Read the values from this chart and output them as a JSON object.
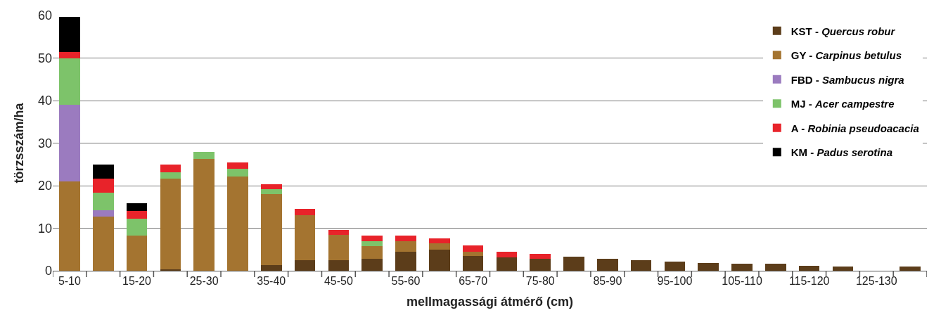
{
  "chart_data": {
    "type": "bar",
    "stacked": true,
    "xlabel": "mellmagassági átmérő (cm)",
    "ylabel": "törzsszám/ha",
    "categories": [
      "5-10",
      null,
      "15-20",
      null,
      "25-30",
      null,
      "35-40",
      null,
      "45-50",
      null,
      "55-60",
      null,
      "65-70",
      null,
      "75-80",
      null,
      "85-90",
      null,
      "95-100",
      null,
      "105-110",
      null,
      "115-120",
      null,
      "125-130",
      null
    ],
    "series": [
      {
        "name": "KST - Quercus robur",
        "color": "#5c3d1a",
        "values": [
          0,
          0,
          0,
          0.4,
          0,
          0,
          1.4,
          2.5,
          2.4,
          2.8,
          4.5,
          5.0,
          3.4,
          3.2,
          2.8,
          3.3,
          2.8,
          2.5,
          2.2,
          1.9,
          1.6,
          1.6,
          1.2,
          1.0,
          0,
          1.0
        ]
      },
      {
        "name": "GY - Carpinus betulus",
        "color": "#a47430",
        "values": [
          21.0,
          12.7,
          8.2,
          21.2,
          26.3,
          22.1,
          16.6,
          10.5,
          6.0,
          3.0,
          2.5,
          1.4,
          1.1,
          0,
          0,
          0,
          0,
          0,
          0,
          0,
          0,
          0,
          0,
          0,
          0,
          0
        ]
      },
      {
        "name": "FBD - Sambucus nigra",
        "color": "#9b7bbf",
        "values": [
          18.0,
          1.5,
          0,
          0,
          0,
          0,
          0,
          0,
          0,
          0,
          0,
          0,
          0,
          0,
          0,
          0,
          0,
          0,
          0,
          0,
          0,
          0,
          0,
          0,
          0,
          0
        ]
      },
      {
        "name": "MJ - Acer campestre",
        "color": "#7dc36a",
        "values": [
          11.0,
          4.2,
          4.1,
          1.6,
          1.6,
          1.8,
          1.1,
          0,
          0,
          1.1,
          0,
          0,
          0,
          0,
          0,
          0,
          0,
          0,
          0,
          0,
          0,
          0,
          0,
          0,
          0,
          0
        ]
      },
      {
        "name": "A - Robinia pseudoacacia",
        "color": "#e8232a",
        "values": [
          1.4,
          3.3,
          1.8,
          1.7,
          0,
          1.6,
          1.3,
          1.6,
          1.2,
          1.3,
          1.2,
          1.2,
          1.4,
          1.2,
          1.1,
          0,
          0,
          0,
          0,
          0,
          0,
          0,
          0,
          0,
          0,
          0
        ]
      },
      {
        "name": "KM - Padus serotina",
        "color": "#000000",
        "values": [
          8.3,
          3.2,
          1.7,
          0,
          0,
          0,
          0,
          0,
          0,
          0,
          0,
          0,
          0,
          0,
          0,
          0,
          0,
          0,
          0,
          0,
          0,
          0,
          0,
          0,
          0,
          0
        ]
      }
    ],
    "ylim": [
      0,
      60
    ],
    "yticks": [
      0,
      10,
      20,
      30,
      40,
      50,
      60
    ],
    "grid": "y",
    "legend": "top right"
  }
}
